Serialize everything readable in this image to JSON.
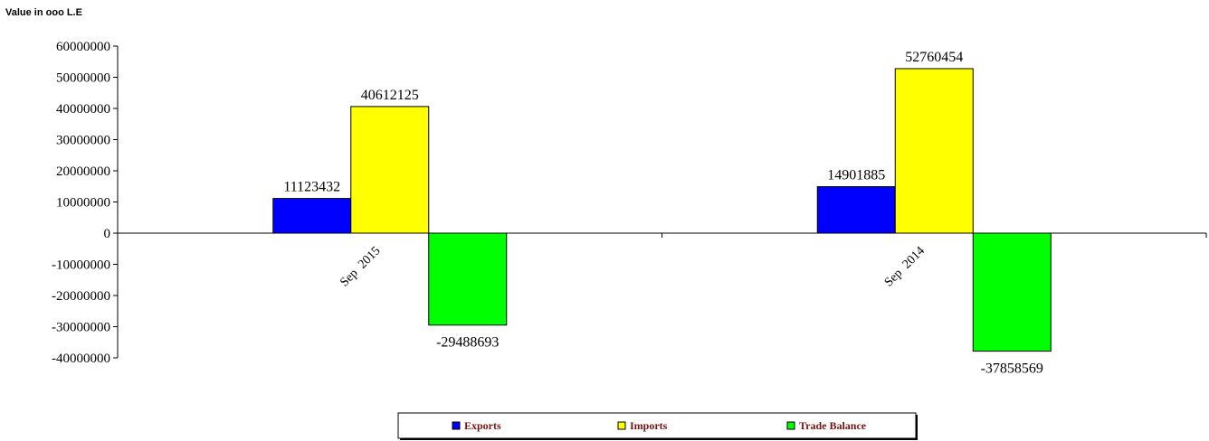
{
  "chart_data": {
    "type": "bar",
    "unit_label": "Value in ooo L.E",
    "categories": [
      "Sep  2015",
      "Sep  2014"
    ],
    "series": [
      {
        "name": "Exports",
        "color": "#0000ff",
        "values": [
          11123432,
          14901885
        ]
      },
      {
        "name": "Imports",
        "color": "#ffff00",
        "values": [
          40612125,
          52760454
        ]
      },
      {
        "name": "Trade Balance",
        "color": "#00ff00",
        "values": [
          -29488693,
          -37858569
        ]
      }
    ],
    "y_ticks": [
      "60000000",
      "50000000",
      "40000000",
      "30000000",
      "20000000",
      "10000000",
      "0",
      "-10000000",
      "-20000000",
      "-30000000",
      "-40000000"
    ],
    "ylim": [
      -40000000,
      60000000
    ],
    "grid": false,
    "legend_position": "bottom"
  }
}
